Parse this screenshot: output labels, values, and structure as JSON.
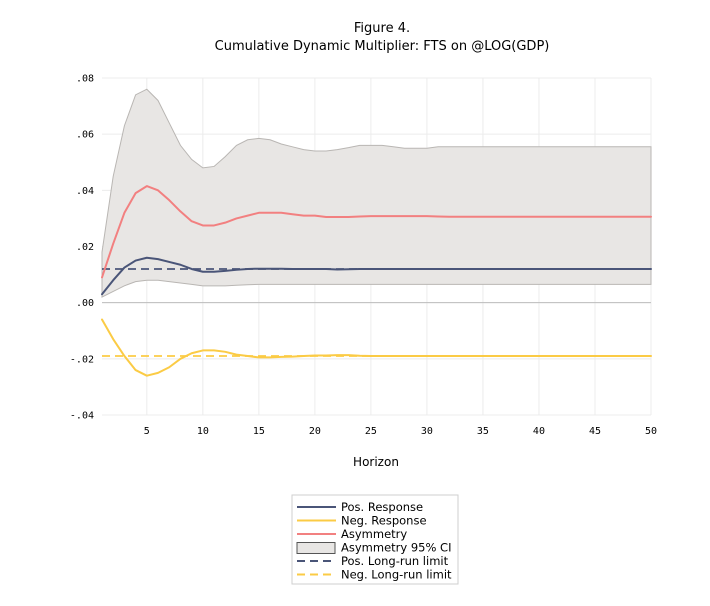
{
  "chart_data": {
    "type": "line",
    "title": "Figure 4.",
    "subtitle": "Cumulative Dynamic Multiplier: FTS on @LOG(GDP)",
    "xlabel": "Horizon",
    "ylabel": "",
    "xlim": [
      1,
      50
    ],
    "ylim": [
      -0.04,
      0.08
    ],
    "x_ticks": [
      5,
      10,
      15,
      20,
      25,
      30,
      35,
      40,
      45,
      50
    ],
    "y_ticks": [
      -0.04,
      -0.02,
      0.0,
      0.02,
      0.04,
      0.06,
      0.08
    ],
    "y_tick_labels": [
      "-.04",
      "-.02",
      ".00",
      ".02",
      ".04",
      ".06",
      ".08"
    ],
    "grid": true,
    "legend_position": "bottom-center",
    "x": [
      1,
      2,
      3,
      4,
      5,
      6,
      7,
      8,
      9,
      10,
      11,
      12,
      13,
      14,
      15,
      16,
      17,
      18,
      19,
      20,
      21,
      22,
      23,
      24,
      25,
      26,
      27,
      28,
      29,
      30,
      31,
      32,
      33,
      34,
      35,
      36,
      37,
      38,
      39,
      40,
      41,
      42,
      43,
      44,
      45,
      46,
      47,
      48,
      49,
      50
    ],
    "band": {
      "name": "Asymmetry 95% CI",
      "color": "#e8e6e4",
      "edge_color": "#b9b6b3",
      "lower": [
        0.002,
        0.004,
        0.006,
        0.0075,
        0.008,
        0.008,
        0.0075,
        0.007,
        0.0065,
        0.006,
        0.006,
        0.006,
        0.0062,
        0.0064,
        0.0065,
        0.0065,
        0.0065,
        0.0065,
        0.0065,
        0.0065,
        0.0065,
        0.0065,
        0.0065,
        0.0065,
        0.0065,
        0.0065,
        0.0065,
        0.0065,
        0.0065,
        0.0065,
        0.0065,
        0.0065,
        0.0065,
        0.0065,
        0.0065,
        0.0065,
        0.0065,
        0.0065,
        0.0065,
        0.0065,
        0.0065,
        0.0065,
        0.0065,
        0.0065,
        0.0065,
        0.0065,
        0.0065,
        0.0065,
        0.0065,
        0.0065
      ],
      "upper": [
        0.018,
        0.045,
        0.063,
        0.074,
        0.076,
        0.072,
        0.064,
        0.056,
        0.051,
        0.048,
        0.0485,
        0.052,
        0.056,
        0.058,
        0.0585,
        0.058,
        0.0565,
        0.0555,
        0.0545,
        0.054,
        0.054,
        0.0545,
        0.0552,
        0.056,
        0.056,
        0.056,
        0.0555,
        0.055,
        0.055,
        0.055,
        0.0555,
        0.0555,
        0.0555,
        0.0555,
        0.0555,
        0.0555,
        0.0555,
        0.0555,
        0.0555,
        0.0555,
        0.0555,
        0.0555,
        0.0555,
        0.0555,
        0.0555,
        0.0555,
        0.0555,
        0.0555,
        0.0555,
        0.0555
      ]
    },
    "series": [
      {
        "name": "Pos. Response",
        "color": "#4a5578",
        "style": "solid",
        "values": [
          0.003,
          0.008,
          0.0125,
          0.015,
          0.016,
          0.0155,
          0.0145,
          0.0135,
          0.012,
          0.011,
          0.011,
          0.0113,
          0.0117,
          0.012,
          0.0121,
          0.0121,
          0.0121,
          0.012,
          0.012,
          0.012,
          0.012,
          0.0118,
          0.0119,
          0.012,
          0.012,
          0.012,
          0.012,
          0.012,
          0.012,
          0.012,
          0.012,
          0.012,
          0.012,
          0.012,
          0.012,
          0.012,
          0.012,
          0.012,
          0.012,
          0.012,
          0.012,
          0.012,
          0.012,
          0.012,
          0.012,
          0.012,
          0.012,
          0.012,
          0.012,
          0.012
        ]
      },
      {
        "name": "Neg. Response",
        "color": "#fbcb45",
        "style": "solid",
        "values": [
          -0.006,
          -0.013,
          -0.019,
          -0.024,
          -0.026,
          -0.025,
          -0.023,
          -0.02,
          -0.018,
          -0.017,
          -0.017,
          -0.0175,
          -0.0185,
          -0.019,
          -0.0195,
          -0.0195,
          -0.0193,
          -0.0192,
          -0.019,
          -0.0188,
          -0.0188,
          -0.0187,
          -0.0187,
          -0.0189,
          -0.019,
          -0.019,
          -0.019,
          -0.019,
          -0.019,
          -0.019,
          -0.019,
          -0.019,
          -0.019,
          -0.019,
          -0.019,
          -0.019,
          -0.019,
          -0.019,
          -0.019,
          -0.019,
          -0.019,
          -0.019,
          -0.019,
          -0.019,
          -0.019,
          -0.019,
          -0.019,
          -0.019,
          -0.019,
          -0.019
        ]
      },
      {
        "name": "Asymmetry",
        "color": "#f28080",
        "style": "solid",
        "values": [
          0.009,
          0.021,
          0.032,
          0.039,
          0.0415,
          0.04,
          0.0365,
          0.0325,
          0.029,
          0.0275,
          0.0275,
          0.0285,
          0.03,
          0.031,
          0.032,
          0.032,
          0.032,
          0.0315,
          0.031,
          0.031,
          0.0305,
          0.0305,
          0.0305,
          0.0307,
          0.0308,
          0.0308,
          0.0308,
          0.0308,
          0.0308,
          0.0308,
          0.0307,
          0.0306,
          0.0306,
          0.0306,
          0.0306,
          0.0306,
          0.0306,
          0.0306,
          0.0306,
          0.0306,
          0.0306,
          0.0306,
          0.0306,
          0.0306,
          0.0306,
          0.0306,
          0.0306,
          0.0306,
          0.0306,
          0.0306
        ]
      },
      {
        "name": "Pos. Long-run limit",
        "color": "#4a5578",
        "style": "dashed",
        "values": [
          0.012,
          0.012,
          0.012,
          0.012,
          0.012,
          0.012,
          0.012,
          0.012,
          0.012,
          0.012,
          0.012,
          0.012,
          0.012,
          0.012,
          0.012,
          0.012,
          0.012,
          0.012,
          0.012,
          0.012,
          0.012,
          0.012,
          0.012,
          0.012,
          0.012,
          0.012,
          0.012,
          0.012,
          0.012,
          0.012,
          0.012,
          0.012,
          0.012,
          0.012,
          0.012,
          0.012,
          0.012,
          0.012,
          0.012,
          0.012,
          0.012,
          0.012,
          0.012,
          0.012,
          0.012,
          0.012,
          0.012,
          0.012,
          0.012,
          0.012
        ]
      },
      {
        "name": "Neg. Long-run limit",
        "color": "#fbcb45",
        "style": "dashed",
        "values": [
          -0.019,
          -0.019,
          -0.019,
          -0.019,
          -0.019,
          -0.019,
          -0.019,
          -0.019,
          -0.019,
          -0.019,
          -0.019,
          -0.019,
          -0.019,
          -0.019,
          -0.019,
          -0.019,
          -0.019,
          -0.019,
          -0.019,
          -0.019,
          -0.019,
          -0.019,
          -0.019,
          -0.019,
          -0.019,
          -0.019,
          -0.019,
          -0.019,
          -0.019,
          -0.019,
          -0.019,
          -0.019,
          -0.019,
          -0.019,
          -0.019,
          -0.019,
          -0.019,
          -0.019,
          -0.019,
          -0.019,
          -0.019,
          -0.019,
          -0.019,
          -0.019,
          -0.019,
          -0.019,
          -0.019,
          -0.019,
          -0.019,
          -0.019
        ]
      }
    ],
    "legend": [
      {
        "label": "Pos. Response",
        "kind": "line",
        "color": "#4a5578",
        "style": "solid"
      },
      {
        "label": "Neg. Response",
        "kind": "line",
        "color": "#fbcb45",
        "style": "solid"
      },
      {
        "label": "Asymmetry",
        "kind": "line",
        "color": "#f28080",
        "style": "solid"
      },
      {
        "label": "Asymmetry 95% CI",
        "kind": "box",
        "color": "#e8e6e4",
        "style": "solid"
      },
      {
        "label": "Pos. Long-run limit",
        "kind": "line",
        "color": "#4a5578",
        "style": "dashed"
      },
      {
        "label": "Neg. Long-run limit",
        "kind": "line",
        "color": "#fbcb45",
        "style": "dashed"
      }
    ]
  }
}
